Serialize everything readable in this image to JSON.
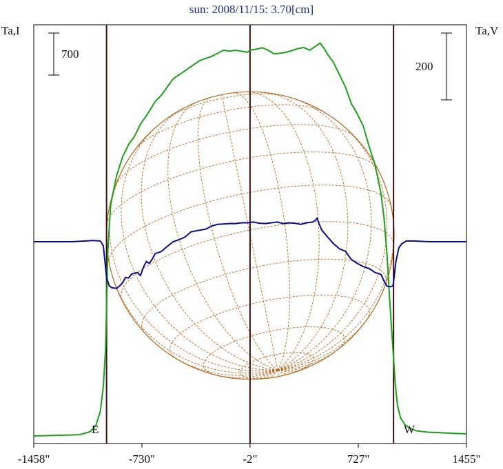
{
  "chart_data": {
    "type": "line",
    "title": "sun: 2008/11/15: 3.70[cm]",
    "ylabel_left": "Ta,I",
    "ylabel_right": "Ta,V",
    "scale_left_label": "700",
    "scale_right_label": "200",
    "east_label": "E",
    "west_label": "W",
    "xlim": [
      -1458,
      1455
    ],
    "x_ticks": [
      {
        "value": -1458,
        "label": "-1458\""
      },
      {
        "value": -730,
        "label": "-730\""
      },
      {
        "value": -2,
        "label": "-2\""
      },
      {
        "value": 727,
        "label": "727\""
      },
      {
        "value": 1455,
        "label": "1455\""
      }
    ],
    "limb_lines_x": [
      -968,
      -2,
      964
    ],
    "disk_radius_arcsec": 968,
    "colors": {
      "stokes_I": "#1aa01a",
      "stokes_V": "#0a0a8c",
      "limb_lines": "#3a0f0f",
      "grid": "#b5651d",
      "title": "#1e2a8c"
    },
    "series": [
      {
        "key": "I",
        "color": "#1aa01a",
        "x": [
          -1458,
          -1300,
          -1150,
          -1080,
          -1040,
          -1010,
          -990,
          -975,
          -968,
          -960,
          -940,
          -900,
          -860,
          -820,
          -780,
          -740,
          -700,
          -640,
          -600,
          -560,
          -520,
          -460,
          -400,
          -340,
          -300,
          -260,
          -220,
          -180,
          -140,
          -100,
          -60,
          -20,
          0,
          40,
          80,
          120,
          160,
          200,
          240,
          280,
          320,
          360,
          400,
          440,
          470,
          500,
          520,
          560,
          600,
          640,
          680,
          720,
          760,
          800,
          840,
          880,
          900,
          920,
          940,
          960,
          975,
          990,
          1010,
          1040,
          1080,
          1120,
          1200,
          1300,
          1380,
          1455
        ],
        "y": [
          0,
          3,
          6,
          20,
          50,
          120,
          240,
          420,
          620,
          900,
          1130,
          1270,
          1360,
          1420,
          1460,
          1520,
          1560,
          1630,
          1660,
          1700,
          1740,
          1770,
          1800,
          1830,
          1840,
          1850,
          1865,
          1880,
          1875,
          1880,
          1875,
          1870,
          1880,
          1885,
          1892,
          1880,
          1862,
          1865,
          1870,
          1878,
          1888,
          1893,
          1880,
          1900,
          1915,
          1885,
          1860,
          1820,
          1760,
          1700,
          1620,
          1570,
          1510,
          1410,
          1320,
          1180,
          1060,
          880,
          640,
          420,
          260,
          150,
          90,
          55,
          35,
          25,
          18,
          15,
          12,
          10
        ]
      },
      {
        "key": "V",
        "color": "#0a0a8c",
        "x": [
          -1458,
          -1200,
          -1060,
          -1010,
          -990,
          -980,
          -968,
          -950,
          -930,
          -900,
          -880,
          -860,
          -840,
          -820,
          -800,
          -780,
          -760,
          -740,
          -720,
          -700,
          -680,
          -660,
          -640,
          -600,
          -560,
          -520,
          -480,
          -440,
          -400,
          -360,
          -300,
          -260,
          -220,
          -180,
          -140,
          -100,
          -60,
          -20,
          20,
          60,
          100,
          140,
          180,
          220,
          260,
          300,
          340,
          380,
          420,
          440,
          450,
          460,
          480,
          520,
          560,
          600,
          640,
          680,
          720,
          760,
          800,
          840,
          880,
          900,
          920,
          940,
          960,
          968,
          980,
          1000,
          1020,
          1050,
          1100,
          1200,
          1300,
          1455
        ],
        "y": [
          0,
          0,
          3,
          2,
          -10,
          -45,
          -90,
          -112,
          -117,
          -118,
          -112,
          -104,
          -90,
          -92,
          -82,
          -80,
          -78,
          -86,
          -65,
          -50,
          -55,
          -44,
          -30,
          -25,
          -12,
          0,
          5,
          12,
          25,
          28,
          32,
          40,
          44,
          45,
          46,
          46,
          48,
          48,
          50,
          47,
          46,
          48,
          50,
          46,
          48,
          47,
          44,
          48,
          50,
          55,
          60,
          48,
          30,
          12,
          -5,
          -18,
          -24,
          -45,
          -55,
          -63,
          -68,
          -78,
          -83,
          -100,
          -113,
          -114,
          -112,
          -90,
          -50,
          -15,
          -5,
          2,
          2,
          0,
          0,
          0
        ]
      }
    ],
    "I_axis": {
      "baseline_y": 0,
      "max_y": 1930
    },
    "V_axis": {
      "zero_y": 0,
      "range": [
        -500,
        540
      ]
    }
  }
}
